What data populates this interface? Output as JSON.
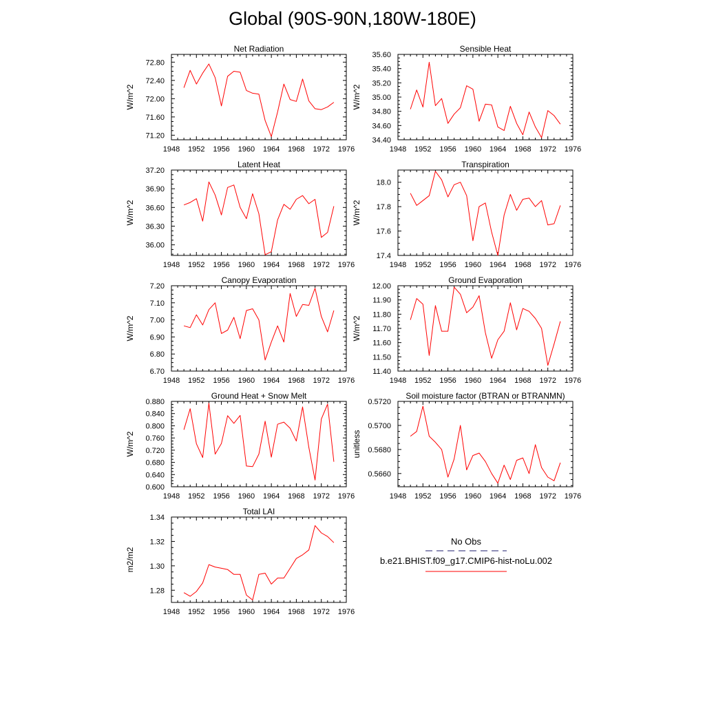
{
  "page": {
    "title": "Global (90S-90N,180W-180E)"
  },
  "legend": {
    "obs_label": "No Obs",
    "obs_color": "#4a4a8a",
    "case_label": "b.e21.BHIST.f09_g17.CMIP6-hist-noLu.002",
    "case_color": "#ff0000"
  },
  "chart_data": [
    {
      "type": "line",
      "title": "Net Radiation",
      "ylabel": "W/m^2",
      "xlim": [
        1948,
        1976
      ],
      "ylim": [
        71.1,
        72.97
      ],
      "xticks": [
        "1948",
        "1952",
        "1956",
        "1960",
        "1964",
        "1968",
        "1972",
        "1976"
      ],
      "yticks": [
        "71.20",
        "71.60",
        "72.00",
        "72.40",
        "72.80"
      ],
      "series": [
        {
          "x": [
            1950,
            1951,
            1952,
            1953,
            1954,
            1955,
            1956,
            1957,
            1958,
            1959,
            1960,
            1961,
            1962,
            1963,
            1964,
            1965,
            1966,
            1967,
            1968,
            1969,
            1970,
            1971,
            1972,
            1973,
            1974
          ],
          "values": [
            72.24,
            72.62,
            72.32,
            72.56,
            72.76,
            72.46,
            71.84,
            72.49,
            72.6,
            72.58,
            72.18,
            72.12,
            72.1,
            71.52,
            71.17,
            71.71,
            72.32,
            71.98,
            71.94,
            72.43,
            71.95,
            71.78,
            71.76,
            71.82,
            71.92
          ]
        }
      ]
    },
    {
      "type": "line",
      "title": "Sensible Heat",
      "ylabel": "W/m^2",
      "xlim": [
        1948,
        1976
      ],
      "ylim": [
        34.4,
        35.6
      ],
      "xticks": [
        "1948",
        "1952",
        "1956",
        "1960",
        "1964",
        "1968",
        "1972",
        "1976"
      ],
      "yticks": [
        "34.40",
        "34.60",
        "34.80",
        "35.00",
        "35.20",
        "35.40",
        "35.60"
      ],
      "series": [
        {
          "x": [
            1950,
            1951,
            1952,
            1953,
            1954,
            1955,
            1956,
            1957,
            1958,
            1959,
            1960,
            1961,
            1962,
            1963,
            1964,
            1965,
            1966,
            1967,
            1968,
            1969,
            1970,
            1971,
            1972,
            1973,
            1974
          ],
          "values": [
            34.83,
            35.1,
            34.86,
            35.49,
            34.88,
            34.98,
            34.63,
            34.76,
            34.85,
            35.16,
            35.11,
            34.66,
            34.9,
            34.89,
            34.58,
            34.53,
            34.87,
            34.63,
            34.47,
            34.79,
            34.58,
            34.43,
            34.81,
            34.74,
            34.62
          ]
        }
      ]
    },
    {
      "type": "line",
      "title": "Latent Heat",
      "ylabel": "W/m^2",
      "xlim": [
        1948,
        1976
      ],
      "ylim": [
        35.83,
        37.2
      ],
      "xticks": [
        "1948",
        "1952",
        "1956",
        "1960",
        "1964",
        "1968",
        "1972",
        "1976"
      ],
      "yticks": [
        "36.00",
        "36.30",
        "36.60",
        "36.90",
        "37.20"
      ],
      "series": [
        {
          "x": [
            1950,
            1951,
            1952,
            1953,
            1954,
            1955,
            1956,
            1957,
            1958,
            1959,
            1960,
            1961,
            1962,
            1963,
            1964,
            1965,
            1966,
            1967,
            1968,
            1969,
            1970,
            1971,
            1972,
            1973,
            1974
          ],
          "values": [
            36.64,
            36.68,
            36.74,
            36.38,
            37.01,
            36.8,
            36.48,
            36.92,
            36.96,
            36.6,
            36.42,
            36.82,
            36.5,
            35.84,
            35.89,
            36.4,
            36.65,
            36.57,
            36.73,
            36.79,
            36.66,
            36.73,
            36.12,
            36.2,
            36.62
          ]
        }
      ]
    },
    {
      "type": "line",
      "title": "Transpiration",
      "ylabel": "W/m^2",
      "xlim": [
        1948,
        1976
      ],
      "ylim": [
        17.4,
        18.1
      ],
      "xticks": [
        "1948",
        "1952",
        "1956",
        "1960",
        "1964",
        "1968",
        "1972",
        "1976"
      ],
      "yticks": [
        "17.4",
        "17.6",
        "17.8",
        "18.0"
      ],
      "series": [
        {
          "x": [
            1950,
            1951,
            1952,
            1953,
            1954,
            1955,
            1956,
            1957,
            1958,
            1959,
            1960,
            1961,
            1962,
            1963,
            1964,
            1965,
            1966,
            1967,
            1968,
            1969,
            1970,
            1971,
            1972,
            1973,
            1974
          ],
          "values": [
            17.91,
            17.81,
            17.85,
            17.89,
            18.09,
            18.02,
            17.88,
            17.98,
            18.0,
            17.89,
            17.52,
            17.8,
            17.83,
            17.59,
            17.4,
            17.73,
            17.9,
            17.77,
            17.86,
            17.87,
            17.8,
            17.85,
            17.65,
            17.66,
            17.81
          ]
        }
      ]
    },
    {
      "type": "line",
      "title": "Canopy Evaporation",
      "ylabel": "W/m^2",
      "xlim": [
        1948,
        1976
      ],
      "ylim": [
        6.7,
        7.2
      ],
      "xticks": [
        "1948",
        "1952",
        "1956",
        "1960",
        "1964",
        "1968",
        "1972",
        "1976"
      ],
      "yticks": [
        "6.70",
        "6.80",
        "6.90",
        "7.00",
        "7.10",
        "7.20"
      ],
      "series": [
        {
          "x": [
            1950,
            1951,
            1952,
            1953,
            1954,
            1955,
            1956,
            1957,
            1958,
            1959,
            1960,
            1961,
            1962,
            1963,
            1964,
            1965,
            1966,
            1967,
            1968,
            1969,
            1970,
            1971,
            1972,
            1973,
            1974
          ],
          "values": [
            6.965,
            6.955,
            7.03,
            6.97,
            7.06,
            7.1,
            6.92,
            6.94,
            7.015,
            6.89,
            7.055,
            7.065,
            7.0,
            6.765,
            6.87,
            6.965,
            6.87,
            7.155,
            7.02,
            7.09,
            7.085,
            7.185,
            7.02,
            6.93,
            7.055
          ]
        }
      ]
    },
    {
      "type": "line",
      "title": "Ground Evaporation",
      "ylabel": "W/m^2",
      "xlim": [
        1948,
        1976
      ],
      "ylim": [
        11.4,
        12.0
      ],
      "xticks": [
        "1948",
        "1952",
        "1956",
        "1960",
        "1964",
        "1968",
        "1972",
        "1976"
      ],
      "yticks": [
        "11.40",
        "11.50",
        "11.60",
        "11.70",
        "11.80",
        "11.90",
        "12.00"
      ],
      "series": [
        {
          "x": [
            1950,
            1951,
            1952,
            1953,
            1954,
            1955,
            1956,
            1957,
            1958,
            1959,
            1960,
            1961,
            1962,
            1963,
            1964,
            1965,
            1966,
            1967,
            1968,
            1969,
            1970,
            1971,
            1972,
            1973,
            1974
          ],
          "values": [
            11.76,
            11.91,
            11.87,
            11.51,
            11.86,
            11.68,
            11.68,
            11.99,
            11.94,
            11.81,
            11.85,
            11.93,
            11.67,
            11.49,
            11.62,
            11.68,
            11.88,
            11.69,
            11.84,
            11.82,
            11.77,
            11.7,
            11.44,
            11.59,
            11.75
          ]
        }
      ]
    },
    {
      "type": "line",
      "title": "Ground Heat + Snow Melt",
      "ylabel": "W/m^2",
      "xlim": [
        1948,
        1976
      ],
      "ylim": [
        0.6,
        0.88
      ],
      "xticks": [
        "1948",
        "1952",
        "1956",
        "1960",
        "1964",
        "1968",
        "1972",
        "1976"
      ],
      "yticks": [
        "0.600",
        "0.640",
        "0.680",
        "0.720",
        "0.760",
        "0.800",
        "0.840",
        "0.880"
      ],
      "series": [
        {
          "x": [
            1950,
            1951,
            1952,
            1953,
            1954,
            1955,
            1956,
            1957,
            1958,
            1959,
            1960,
            1961,
            1962,
            1963,
            1964,
            1965,
            1966,
            1967,
            1968,
            1969,
            1970,
            1971,
            1972,
            1973,
            1974
          ],
          "values": [
            0.787,
            0.856,
            0.741,
            0.696,
            0.874,
            0.707,
            0.742,
            0.833,
            0.808,
            0.834,
            0.668,
            0.666,
            0.707,
            0.815,
            0.697,
            0.805,
            0.812,
            0.792,
            0.75,
            0.862,
            0.729,
            0.622,
            0.822,
            0.871,
            0.682
          ]
        }
      ]
    },
    {
      "type": "line",
      "title": "Soil moisture factor (BTRAN or BTRANMN)",
      "ylabel": "unitless",
      "xlim": [
        1948,
        1976
      ],
      "ylim": [
        0.5649,
        0.572
      ],
      "xticks": [
        "1948",
        "1952",
        "1956",
        "1960",
        "1964",
        "1968",
        "1972",
        "1976"
      ],
      "yticks": [
        "0.5660",
        "0.5680",
        "0.5700",
        "0.5720"
      ],
      "series": [
        {
          "x": [
            1950,
            1951,
            1952,
            1953,
            1954,
            1955,
            1956,
            1957,
            1958,
            1959,
            1960,
            1961,
            1962,
            1963,
            1964,
            1965,
            1966,
            1967,
            1968,
            1969,
            1970,
            1971,
            1972,
            1973,
            1974
          ],
          "values": [
            0.5691,
            0.5695,
            0.5716,
            0.5691,
            0.5686,
            0.568,
            0.5657,
            0.5672,
            0.57,
            0.5663,
            0.5675,
            0.5677,
            0.567,
            0.566,
            0.5652,
            0.5667,
            0.5655,
            0.5671,
            0.5673,
            0.566,
            0.5684,
            0.5665,
            0.5657,
            0.5654,
            0.5669
          ]
        }
      ]
    },
    {
      "type": "line",
      "title": "Total LAI",
      "ylabel": "m2/m2",
      "xlim": [
        1948,
        1976
      ],
      "ylim": [
        1.27,
        1.34
      ],
      "xticks": [
        "1948",
        "1952",
        "1956",
        "1960",
        "1964",
        "1968",
        "1972",
        "1976"
      ],
      "yticks": [
        "1.28",
        "1.30",
        "1.32",
        "1.34"
      ],
      "series": [
        {
          "x": [
            1950,
            1951,
            1952,
            1953,
            1954,
            1955,
            1956,
            1957,
            1958,
            1959,
            1960,
            1961,
            1962,
            1963,
            1964,
            1965,
            1966,
            1967,
            1968,
            1969,
            1970,
            1971,
            1972,
            1973,
            1974
          ],
          "values": [
            1.278,
            1.275,
            1.279,
            1.286,
            1.301,
            1.299,
            1.298,
            1.297,
            1.293,
            1.293,
            1.276,
            1.272,
            1.293,
            1.294,
            1.285,
            1.29,
            1.29,
            1.298,
            1.306,
            1.309,
            1.313,
            1.333,
            1.327,
            1.324,
            1.319
          ]
        }
      ]
    }
  ]
}
